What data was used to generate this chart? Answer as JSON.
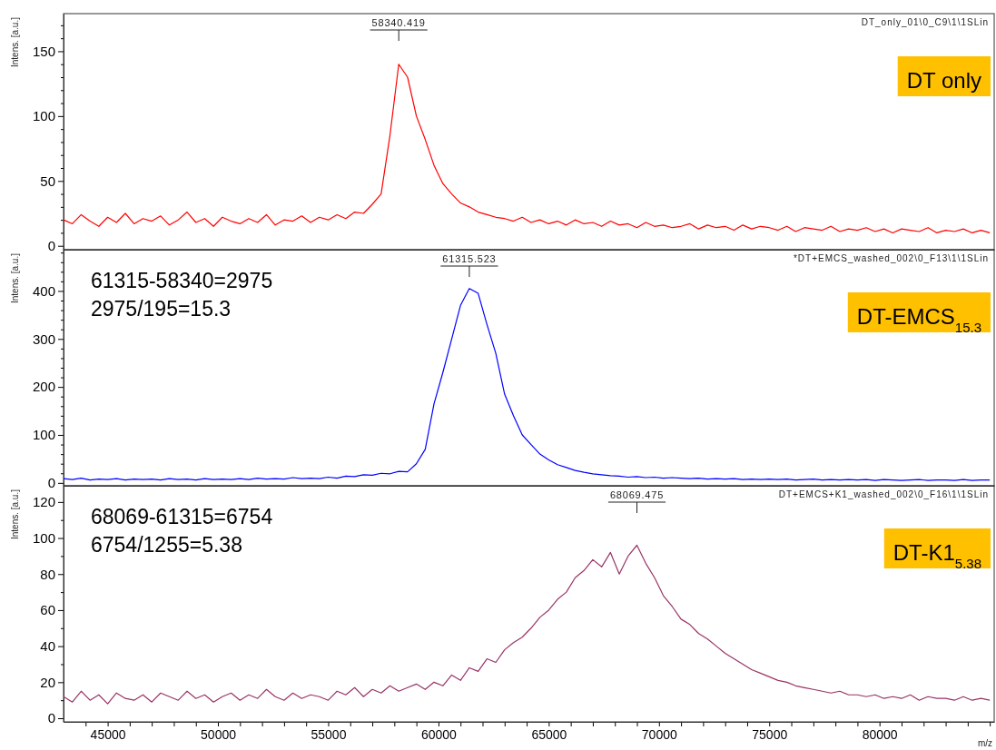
{
  "chart_data": [
    {
      "type": "line",
      "title": "DT only",
      "subtitle": "DT_only_01\\0_C9\\1\\1SLin",
      "ylabel": "Intens. [a.u.]",
      "annotations": [
        "58340.419"
      ],
      "x": [
        43000,
        43400,
        43800,
        44200,
        44600,
        45000,
        45400,
        45800,
        46200,
        46600,
        47000,
        47400,
        47800,
        48200,
        48600,
        49000,
        49400,
        49800,
        50200,
        50600,
        51000,
        51400,
        51800,
        52200,
        52600,
        53000,
        53400,
        53800,
        54200,
        54600,
        55000,
        55400,
        55800,
        56200,
        56600,
        57000,
        57400,
        57800,
        58200,
        58600,
        59000,
        59400,
        59800,
        60200,
        60600,
        61000,
        61400,
        61800,
        62200,
        62600,
        63000,
        63400,
        63800,
        64200,
        64600,
        65000,
        65400,
        65800,
        66200,
        66600,
        67000,
        67400,
        67800,
        68200,
        68600,
        69000,
        69400,
        69800,
        70200,
        70600,
        71000,
        71400,
        71800,
        72200,
        72600,
        73000,
        73400,
        73800,
        74200,
        74600,
        75000,
        75400,
        75800,
        76200,
        76600,
        77000,
        77400,
        77800,
        78200,
        78600,
        79000,
        79400,
        79800,
        80200,
        80600,
        81000,
        81400,
        81800,
        82200,
        82600,
        83000,
        83400,
        83800,
        84200,
        84600,
        85000
      ],
      "series": [
        {
          "color": "#ff0000",
          "values": [
            20,
            17,
            24,
            19,
            15,
            22,
            18,
            25,
            17,
            21,
            19,
            23,
            16,
            20,
            26,
            18,
            21,
            15,
            22,
            19,
            17,
            21,
            18,
            24,
            16,
            20,
            19,
            23,
            18,
            22,
            20,
            24,
            21,
            26,
            25,
            32,
            40,
            85,
            140,
            130,
            100,
            82,
            62,
            48,
            40,
            33,
            30,
            26,
            24,
            22,
            21,
            19,
            22,
            18,
            20,
            17,
            19,
            16,
            20,
            17,
            18,
            15,
            19,
            16,
            17,
            14,
            18,
            15,
            16,
            14,
            15,
            17,
            13,
            16,
            14,
            15,
            12,
            16,
            13,
            15,
            14,
            12,
            15,
            11,
            14,
            13,
            12,
            15,
            11,
            13,
            12,
            14,
            11,
            13,
            10,
            13,
            12,
            11,
            14,
            10,
            12,
            11,
            13,
            10,
            12,
            10
          ]
        }
      ],
      "xlim": [
        43000,
        85200
      ],
      "ylim": [
        -3,
        179
      ],
      "xticks": [
        45000,
        50000,
        55000,
        60000,
        65000,
        70000,
        75000,
        80000
      ],
      "yticks": [
        0,
        {
          "value": 10,
          "label": null
        },
        {
          "value": 20,
          "label": null
        },
        {
          "value": 30,
          "label": null
        },
        {
          "value": 40,
          "label": null
        },
        50,
        {
          "value": 60,
          "label": null
        },
        {
          "value": 70,
          "label": null
        },
        {
          "value": 80,
          "label": null
        },
        {
          "value": 90,
          "label": null
        },
        100,
        {
          "value": 110,
          "label": null
        },
        {
          "value": 120,
          "label": null
        },
        {
          "value": 130,
          "label": null
        },
        {
          "value": 140,
          "label": null
        },
        150,
        {
          "value": 160,
          "label": null
        },
        {
          "value": 170,
          "label": null
        }
      ],
      "tick_labels": "y"
    },
    {
      "type": "line",
      "title": "DT-EMCS$_{15.3}$",
      "subtitle": "*DT+EMCS_washed_002\\0_F13\\1\\1SLin",
      "ylabel": "Intens. [a.u.]",
      "annotations": [
        "61315.523",
        "61315-58340=2975",
        "2975/195=15.3"
      ],
      "x": [
        43000,
        43400,
        43800,
        44200,
        44600,
        45000,
        45400,
        45800,
        46200,
        46600,
        47000,
        47400,
        47800,
        48200,
        48600,
        49000,
        49400,
        49800,
        50200,
        50600,
        51000,
        51400,
        51800,
        52200,
        52600,
        53000,
        53400,
        53800,
        54200,
        54600,
        55000,
        55400,
        55800,
        56200,
        56600,
        57000,
        57400,
        57800,
        58200,
        58600,
        59000,
        59400,
        59800,
        60200,
        60600,
        61000,
        61400,
        61800,
        62200,
        62600,
        63000,
        63400,
        63800,
        64200,
        64600,
        65000,
        65400,
        65800,
        66200,
        66600,
        67000,
        67400,
        67800,
        68200,
        68600,
        69000,
        69400,
        69800,
        70200,
        70600,
        71000,
        71400,
        71800,
        72200,
        72600,
        73000,
        73400,
        73800,
        74200,
        74600,
        75000,
        75400,
        75800,
        76200,
        76600,
        77000,
        77400,
        77800,
        78200,
        78600,
        79000,
        79400,
        79800,
        80200,
        80600,
        81000,
        81400,
        81800,
        82200,
        82600,
        83000,
        83400,
        83800,
        84200,
        84600,
        85000
      ],
      "series": [
        {
          "color": "#0000ff",
          "values": [
            9,
            7,
            10,
            6,
            8,
            7,
            9,
            6,
            8,
            7,
            8,
            6,
            9,
            7,
            8,
            6,
            9,
            7,
            8,
            7,
            9,
            7,
            10,
            8,
            9,
            8,
            11,
            9,
            10,
            9,
            12,
            10,
            14,
            13,
            17,
            16,
            20,
            19,
            24,
            23,
            40,
            70,
            165,
            230,
            300,
            370,
            405,
            395,
            330,
            270,
            185,
            140,
            100,
            80,
            60,
            48,
            38,
            32,
            26,
            22,
            19,
            17,
            15,
            14,
            12,
            13,
            11,
            12,
            10,
            11,
            10,
            9,
            10,
            8,
            9,
            8,
            9,
            7,
            8,
            7,
            8,
            7,
            8,
            6,
            7,
            8,
            6,
            7,
            6,
            7,
            6,
            7,
            5,
            7,
            6,
            5,
            6,
            7,
            5,
            6,
            6,
            5,
            7,
            5,
            6,
            6
          ]
        }
      ],
      "xlim": [
        43000,
        85200
      ],
      "ylim": [
        -6,
        486
      ],
      "xticks": [
        45000,
        50000,
        55000,
        60000,
        65000,
        70000,
        75000,
        80000
      ],
      "yticks": [
        0,
        {
          "value": 20,
          "label": null
        },
        {
          "value": 40,
          "label": null
        },
        {
          "value": 60,
          "label": null
        },
        {
          "value": 80,
          "label": null
        },
        100,
        {
          "value": 120,
          "label": null
        },
        {
          "value": 140,
          "label": null
        },
        {
          "value": 160,
          "label": null
        },
        {
          "value": 180,
          "label": null
        },
        200,
        {
          "value": 220,
          "label": null
        },
        {
          "value": 240,
          "label": null
        },
        {
          "value": 260,
          "label": null
        },
        {
          "value": 280,
          "label": null
        },
        300,
        {
          "value": 320,
          "label": null
        },
        {
          "value": 340,
          "label": null
        },
        {
          "value": 360,
          "label": null
        },
        {
          "value": 380,
          "label": null
        },
        400,
        {
          "value": 420,
          "label": null
        },
        {
          "value": 440,
          "label": null
        },
        {
          "value": 460,
          "label": null
        },
        {
          "value": 480,
          "label": null
        }
      ],
      "tick_labels": "y"
    },
    {
      "type": "line",
      "title": "DT-K1$_{5.38}$",
      "subtitle": "DT+EMCS+K1_washed_002\\0_F16\\1\\1SLin",
      "ylabel": "Intens. [a.u.]",
      "xlabel": "m/z",
      "annotations": [
        "68069.475",
        "68069-61315=6754",
        "6754/1255=5.38"
      ],
      "x": [
        43000,
        43400,
        43800,
        44200,
        44600,
        45000,
        45400,
        45800,
        46200,
        46600,
        47000,
        47400,
        47800,
        48200,
        48600,
        49000,
        49400,
        49800,
        50200,
        50600,
        51000,
        51400,
        51800,
        52200,
        52600,
        53000,
        53400,
        53800,
        54200,
        54600,
        55000,
        55400,
        55800,
        56200,
        56600,
        57000,
        57400,
        57800,
        58200,
        58600,
        59000,
        59400,
        59800,
        60200,
        60600,
        61000,
        61400,
        61800,
        62200,
        62600,
        63000,
        63400,
        63800,
        64200,
        64600,
        65000,
        65400,
        65800,
        66200,
        66600,
        67000,
        67400,
        67800,
        68200,
        68600,
        69000,
        69400,
        69800,
        70200,
        70600,
        71000,
        71400,
        71800,
        72200,
        72600,
        73000,
        73400,
        73800,
        74200,
        74600,
        75000,
        75400,
        75800,
        76200,
        76600,
        77000,
        77400,
        77800,
        78200,
        78600,
        79000,
        79400,
        79800,
        80200,
        80600,
        81000,
        81400,
        81800,
        82200,
        82600,
        83000,
        83400,
        83800,
        84200,
        84600,
        85000
      ],
      "series": [
        {
          "color": "#993366",
          "values": [
            12,
            9,
            15,
            10,
            13,
            8,
            14,
            11,
            10,
            13,
            9,
            14,
            12,
            10,
            15,
            11,
            13,
            9,
            12,
            14,
            10,
            13,
            11,
            16,
            12,
            10,
            14,
            11,
            13,
            12,
            10,
            15,
            13,
            17,
            12,
            16,
            14,
            18,
            15,
            17,
            19,
            16,
            20,
            18,
            24,
            21,
            28,
            26,
            33,
            31,
            38,
            42,
            45,
            50,
            56,
            60,
            66,
            70,
            78,
            82,
            88,
            84,
            92,
            80,
            90,
            96,
            86,
            78,
            68,
            62,
            55,
            52,
            47,
            44,
            40,
            36,
            33,
            30,
            27,
            25,
            23,
            21,
            20,
            18,
            17,
            16,
            15,
            14,
            15,
            13,
            13,
            12,
            13,
            11,
            12,
            11,
            13,
            10,
            12,
            11,
            11,
            10,
            12,
            10,
            11,
            10
          ]
        }
      ],
      "xlim": [
        43000,
        85200
      ],
      "ylim": [
        -2,
        129
      ],
      "xticks": [
        {
          "value": 44000,
          "label": null
        },
        45000,
        {
          "value": 46000,
          "label": null
        },
        {
          "value": 47000,
          "label": null
        },
        {
          "value": 48000,
          "label": null
        },
        {
          "value": 49000,
          "label": null
        },
        50000,
        {
          "value": 51000,
          "label": null
        },
        {
          "value": 52000,
          "label": null
        },
        {
          "value": 53000,
          "label": null
        },
        {
          "value": 54000,
          "label": null
        },
        55000,
        {
          "value": 56000,
          "label": null
        },
        {
          "value": 57000,
          "label": null
        },
        {
          "value": 58000,
          "label": null
        },
        {
          "value": 59000,
          "label": null
        },
        60000,
        {
          "value": 61000,
          "label": null
        },
        {
          "value": 62000,
          "label": null
        },
        {
          "value": 63000,
          "label": null
        },
        {
          "value": 64000,
          "label": null
        },
        65000,
        {
          "value": 66000,
          "label": null
        },
        {
          "value": 67000,
          "label": null
        },
        {
          "value": 68000,
          "label": null
        },
        {
          "value": 69000,
          "label": null
        },
        70000,
        {
          "value": 71000,
          "label": null
        },
        {
          "value": 72000,
          "label": null
        },
        {
          "value": 73000,
          "label": null
        },
        {
          "value": 74000,
          "label": null
        },
        75000,
        {
          "value": 76000,
          "label": null
        },
        {
          "value": 77000,
          "label": null
        },
        {
          "value": 78000,
          "label": null
        },
        {
          "value": 79000,
          "label": null
        },
        80000,
        {
          "value": 81000,
          "label": null
        },
        {
          "value": 82000,
          "label": null
        },
        {
          "value": 83000,
          "label": null
        },
        {
          "value": 84000,
          "label": null
        },
        {
          "value": 85000,
          "label": null
        }
      ],
      "yticks": [
        0,
        {
          "value": 10,
          "label": null
        },
        20,
        {
          "value": 30,
          "label": null
        },
        40,
        {
          "value": 50,
          "label": null
        },
        60,
        {
          "value": 70,
          "label": null
        },
        80,
        {
          "value": 90,
          "label": null
        },
        100,
        {
          "value": 110,
          "label": null
        },
        120
      ]
    }
  ]
}
